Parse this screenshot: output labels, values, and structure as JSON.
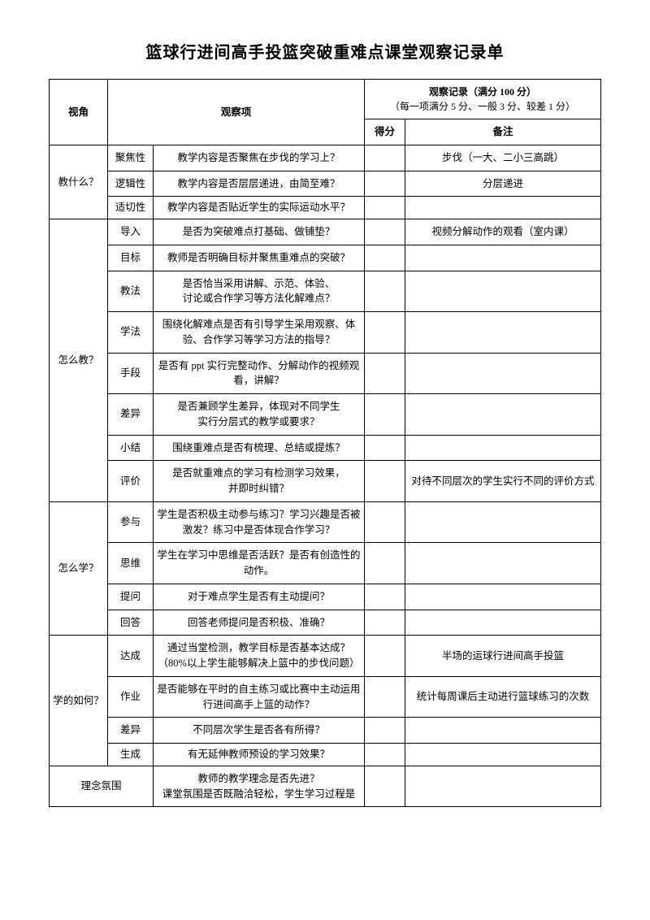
{
  "title": "篮球行进间高手投篮突破重难点课堂观察记录单",
  "header": {
    "perspective": "视角",
    "item": "观察项",
    "record_top": "观察记录（满分 100 分）",
    "record_sub": "（每一项满分 5 分、一般 3 分、较差 1 分）",
    "score": "得分",
    "note": "备注"
  },
  "sections": [
    {
      "name": "教什么？",
      "rows": [
        {
          "item": "聚焦性",
          "desc": "教学内容是否聚焦在步伐的学习上？",
          "note": "步伐（一大、二小三高跳）"
        },
        {
          "item": "逻辑性",
          "desc": "教学内容是否层层递进，由简至难？",
          "note": "分层递进"
        },
        {
          "item": "适切性",
          "desc": "教学内容是否贴近学生的实际运动水平？",
          "note": ""
        }
      ]
    },
    {
      "name": "怎么教？",
      "rows": [
        {
          "item": "导入",
          "desc": "是否为突破难点打基础、做铺垫？",
          "note": "视频分解动作的观看（室内课）"
        },
        {
          "item": "目标",
          "desc": "教师是否明确目标并聚焦重难点的突破？",
          "note": ""
        },
        {
          "item": "教法",
          "desc": "是否恰当采用讲解、示范、体验、\n讨论或合作学习等方法化解难点？",
          "note": ""
        },
        {
          "item": "学法",
          "desc": "围绕化解难点是否有引导学生采用观察、体验、合作学习等学习方法的指导？",
          "note": ""
        },
        {
          "item": "手段",
          "desc": "是否有 ppt 实行完整动作、分解动作的视频观看，讲解？",
          "note": ""
        },
        {
          "item": "差异",
          "desc": "是否兼顾学生差异，体现对不同学生\n实行分层式的教学或要求？",
          "note": ""
        },
        {
          "item": "小结",
          "desc": "围绕重难点是否有梳理、总结或提炼？",
          "note": ""
        },
        {
          "item": "评价",
          "desc": "是否就重难点的学习有检测学习效果，\n并即时纠错？",
          "note": "对待不同层次的学生实行不同的评价方式"
        }
      ]
    },
    {
      "name": "怎么学？",
      "rows": [
        {
          "item": "参与",
          "desc": "学生是否积极主动参与练习？学习兴趣是否被激发？练习中是否体现合作学习？",
          "note": ""
        },
        {
          "item": "思维",
          "desc": "学生在学习中思维是否活跃？是否有创造性的动作。",
          "note": ""
        },
        {
          "item": "提问",
          "desc": "对于难点学生是否有主动提问？",
          "note": ""
        },
        {
          "item": "回答",
          "desc": "回答老师提问是否积极、准确？",
          "note": ""
        }
      ]
    },
    {
      "name": "学的如何？",
      "rows": [
        {
          "item": "达成",
          "desc": "通过当堂检测，教学目标是否基本达成？\n（80%以上学生能够解决上篮中的步伐问题）",
          "note": "半场的运球行进间高手投篮"
        },
        {
          "item": "作业",
          "desc": "是否能够在平时的自主练习或比赛中主动运用行进间高手上篮的动作？",
          "note": "统计每周课后主动进行篮球练习的次数"
        },
        {
          "item": "差异",
          "desc": "不同层次学生是否各有所得？",
          "note": ""
        },
        {
          "item": "生成",
          "desc": "有无延伸教师预设的学习效果？",
          "note": ""
        }
      ]
    }
  ],
  "footer": {
    "label": "理念氛围",
    "desc": "教师的教学理念是否先进？\n课堂氛围是否既融洽轻松，学生学习过程是"
  }
}
